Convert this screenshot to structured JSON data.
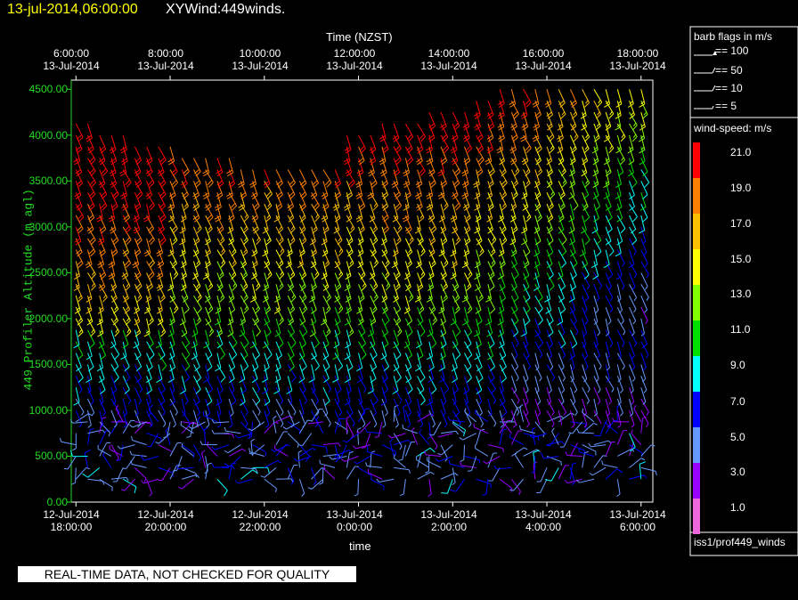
{
  "header": {
    "datetime": "13-jul-2014,06:00:00",
    "product": "XYWind:449winds."
  },
  "chart_data": {
    "type": "scatter",
    "top_axis": {
      "label": "Time (NZST)",
      "ticks": [
        {
          "time": "6:00:00",
          "date": "13-Jul-2014"
        },
        {
          "time": "8:00:00",
          "date": "13-Jul-2014"
        },
        {
          "time": "10:00:00",
          "date": "13-Jul-2014"
        },
        {
          "time": "12:00:00",
          "date": "13-Jul-2014"
        },
        {
          "time": "14:00:00",
          "date": "13-Jul-2014"
        },
        {
          "time": "16:00:00",
          "date": "13-Jul-2014"
        },
        {
          "time": "18:00:00",
          "date": "13-Jul-2014"
        }
      ]
    },
    "bottom_axis": {
      "label": "time",
      "ticks": [
        {
          "date": "12-Jul-2014",
          "time": "18:00:00"
        },
        {
          "date": "12-Jul-2014",
          "time": "20:00:00"
        },
        {
          "date": "12-Jul-2014",
          "time": "22:00:00"
        },
        {
          "date": "13-Jul-2014",
          "time": "0:00:00"
        },
        {
          "date": "13-Jul-2014",
          "time": "2:00:00"
        },
        {
          "date": "13-Jul-2014",
          "time": "4:00:00"
        },
        {
          "date": "13-Jul-2014",
          "time": "6:00:00"
        }
      ]
    },
    "y_axis": {
      "label": "449 Profiler Altitude (m agl)",
      "ticks": [
        "0.00",
        "500.00",
        "1000.00",
        "1500.00",
        "2000.00",
        "2500.00",
        "3000.00",
        "3500.00",
        "4000.00",
        "4500.00"
      ],
      "ylim": [
        0,
        4600
      ]
    },
    "x_hours_range": [
      -0.1,
      12.25
    ],
    "barb_legend": {
      "title": "barb flags in m/s",
      "rows": [
        "== 100",
        "== 50",
        "== 10",
        "== 5"
      ]
    },
    "speed_scale": {
      "title": "wind-speed: m/s",
      "levels": [
        {
          "value": "21.0",
          "color": "#ff0000"
        },
        {
          "value": "19.0",
          "color": "#ff8000"
        },
        {
          "value": "17.0",
          "color": "#ffbf00"
        },
        {
          "value": "15.0",
          "color": "#ffff00"
        },
        {
          "value": "13.0",
          "color": "#80ff00"
        },
        {
          "value": "11.0",
          "color": "#00e000"
        },
        {
          "value": "9.0",
          "color": "#00ffff"
        },
        {
          "value": "7.0",
          "color": "#0000ff"
        },
        {
          "value": "5.0",
          "color": "#6699ff"
        },
        {
          "value": "3.0",
          "color": "#9900ff"
        },
        {
          "value": "1.0",
          "color": "#ee66dd"
        }
      ]
    },
    "source": "iss1/prof449_winds"
  },
  "footer": {
    "qc_notice": "REAL-TIME DATA, NOT CHECKED FOR QUALITY"
  }
}
